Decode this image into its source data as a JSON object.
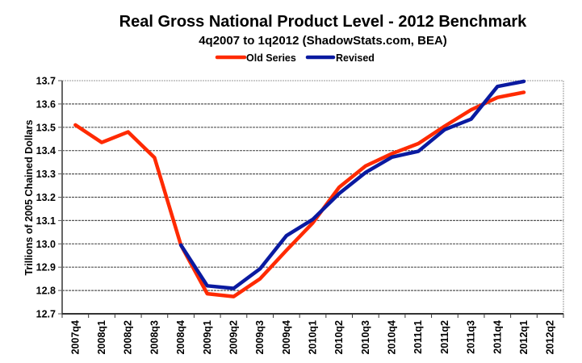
{
  "chart_data": {
    "type": "line",
    "title": "Real Gross National Product Level - 2012 Benchmark",
    "subtitle": "4q2007 to 1q2012 (ShadowStats.com, BEA)",
    "xlabel": "",
    "ylabel": "Trillions of 2005 Chained Dollars",
    "ylim": [
      12.7,
      13.7
    ],
    "yticks": [
      "12.7",
      "12.8",
      "12.9",
      "13.0",
      "13.1",
      "13.2",
      "13.3",
      "13.4",
      "13.5",
      "13.6",
      "13.7"
    ],
    "grid": true,
    "legend_position": "top-center",
    "categories": [
      "2007q4",
      "2008q1",
      "2008q2",
      "2008q3",
      "2008q4",
      "2009q1",
      "2009q2",
      "2009q3",
      "2009q4",
      "2010q1",
      "2010q2",
      "2010q3",
      "2010q4",
      "2011q1",
      "2011q2",
      "2011q3",
      "2011q4",
      "2012q1",
      "2012q2"
    ],
    "series": [
      {
        "name": "Old Series",
        "color": "#ff2a00",
        "values": [
          13.51,
          13.435,
          13.48,
          13.37,
          12.995,
          12.786,
          12.774,
          12.85,
          12.972,
          13.09,
          13.243,
          13.334,
          13.387,
          13.43,
          13.505,
          13.575,
          13.628,
          13.65,
          null
        ]
      },
      {
        "name": "Revised",
        "color": "#0a1aa0",
        "values": [
          null,
          null,
          null,
          null,
          12.995,
          12.82,
          12.809,
          12.893,
          13.035,
          13.105,
          13.216,
          13.306,
          13.372,
          13.397,
          13.49,
          13.535,
          13.675,
          13.697,
          null
        ]
      }
    ]
  }
}
